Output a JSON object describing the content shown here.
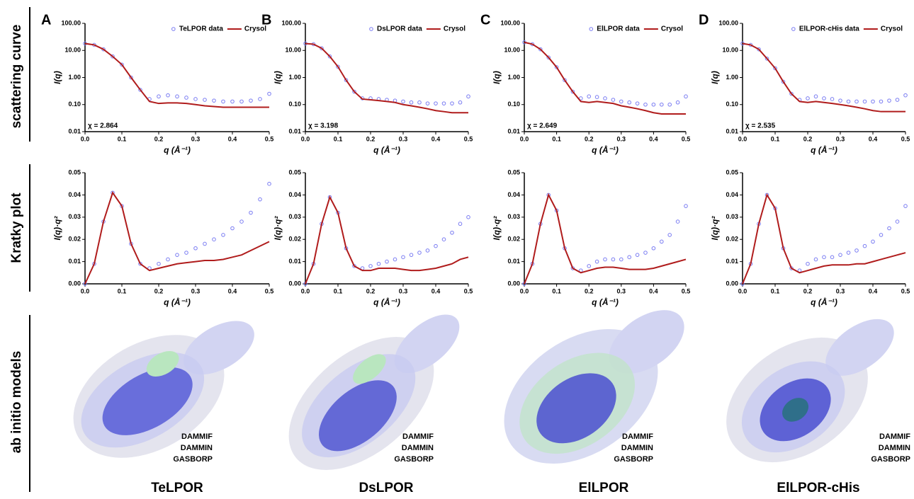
{
  "row_labels": [
    "scattering curve",
    "Kratky plot",
    "ab initio models"
  ],
  "models": [
    {
      "name": "TeLPOR",
      "legend": [
        "DAMMIF",
        "DAMMIN",
        "GASBORP"
      ]
    },
    {
      "name": "DsLPOR",
      "legend": [
        "DAMMIF",
        "DAMMIN",
        "GASBORP"
      ]
    },
    {
      "name": "ElLPOR",
      "legend": [
        "DAMMIF",
        "DAMMIN",
        "GASBORP"
      ]
    },
    {
      "name": "ElLPOR-cHis",
      "legend": [
        "DAMMIF",
        "DAMMIN",
        "GASBORP"
      ]
    }
  ],
  "legend_colors": [
    "#a6a8ee",
    "#6fd27d",
    "#bdbdbd"
  ],
  "chart_data": [
    {
      "type": "line",
      "label": "A",
      "log_y": true,
      "legend": "top-right",
      "annotation": "χ = 2.864",
      "xlabel": "q (Å⁻¹)",
      "ylabel": "I(q)",
      "xlim": [
        0,
        0.5
      ],
      "ylim": [
        0.01,
        100
      ],
      "xticks": [
        {
          "value": 0,
          "label": "0.0"
        },
        0.1,
        0.2,
        0.3,
        0.4,
        0.5
      ],
      "yticks": [
        0.01,
        {
          "value": 0.1,
          "label": "0.10"
        },
        {
          "value": 1,
          "label": "1.00"
        },
        {
          "value": 10,
          "label": "10.00"
        },
        {
          "value": 100,
          "label": "100.00"
        }
      ],
      "x": [
        0,
        0.025,
        0.05,
        0.075,
        0.1,
        0.125,
        0.15,
        0.175,
        0.2,
        0.225,
        0.25,
        0.275,
        0.3,
        0.325,
        0.35,
        0.375,
        0.4,
        0.425,
        0.45,
        0.475,
        0.5
      ],
      "series": [
        {
          "name": "TeLPOR data",
          "color": "#7a7cf2",
          "mode": "markers",
          "values": [
            18,
            16,
            11,
            6,
            3,
            1.0,
            0.35,
            0.16,
            0.2,
            0.22,
            0.2,
            0.18,
            0.16,
            0.15,
            0.14,
            0.13,
            0.13,
            0.13,
            0.14,
            0.16,
            0.25
          ]
        },
        {
          "name": "Crysol",
          "color": "#b01c1c",
          "mode": "line",
          "values": [
            18,
            16,
            11,
            6,
            3,
            1.0,
            0.35,
            0.13,
            0.11,
            0.115,
            0.115,
            0.11,
            0.1,
            0.09,
            0.085,
            0.08,
            0.08,
            0.08,
            0.08,
            0.08,
            0.08
          ]
        }
      ]
    },
    {
      "type": "line",
      "label": "B",
      "log_y": true,
      "legend": "top-right",
      "annotation": "χ = 3.198",
      "xlabel": "q (Å⁻¹)",
      "ylabel": "I(q)",
      "xlim": [
        0,
        0.5
      ],
      "ylim": [
        0.01,
        100
      ],
      "xticks": [
        {
          "value": 0,
          "label": "0.0"
        },
        0.1,
        0.2,
        0.3,
        0.4,
        0.5
      ],
      "yticks": [
        0.01,
        {
          "value": 0.1,
          "label": "0.10"
        },
        {
          "value": 1,
          "label": "1.00"
        },
        {
          "value": 10,
          "label": "10.00"
        },
        {
          "value": 100,
          "label": "100.00"
        }
      ],
      "x": [
        0,
        0.025,
        0.05,
        0.075,
        0.1,
        0.125,
        0.15,
        0.175,
        0.2,
        0.225,
        0.25,
        0.275,
        0.3,
        0.325,
        0.35,
        0.375,
        0.4,
        0.425,
        0.45,
        0.475,
        0.5
      ],
      "series": [
        {
          "name": "DsLPOR data",
          "color": "#7a7cf2",
          "mode": "markers",
          "values": [
            18,
            17,
            12,
            6,
            2.5,
            0.8,
            0.3,
            0.17,
            0.17,
            0.16,
            0.15,
            0.14,
            0.13,
            0.12,
            0.12,
            0.11,
            0.11,
            0.11,
            0.11,
            0.12,
            0.2
          ]
        },
        {
          "name": "Crysol",
          "color": "#b01c1c",
          "mode": "line",
          "values": [
            18,
            17,
            12,
            6,
            2.5,
            0.8,
            0.3,
            0.16,
            0.15,
            0.14,
            0.13,
            0.12,
            0.1,
            0.09,
            0.08,
            0.07,
            0.06,
            0.055,
            0.05,
            0.05,
            0.05
          ]
        }
      ]
    },
    {
      "type": "line",
      "label": "C",
      "log_y": true,
      "legend": "top-right",
      "annotation": "χ = 2.649",
      "xlabel": "q (Å⁻¹)",
      "ylabel": "I(q)",
      "xlim": [
        0,
        0.5
      ],
      "ylim": [
        0.01,
        100
      ],
      "xticks": [
        {
          "value": 0,
          "label": "0.0"
        },
        0.1,
        0.2,
        0.3,
        0.4,
        0.5
      ],
      "yticks": [
        0.01,
        {
          "value": 0.1,
          "label": "0.10"
        },
        {
          "value": 1,
          "label": "1.00"
        },
        {
          "value": 10,
          "label": "10.00"
        },
        {
          "value": 100,
          "label": "100.00"
        }
      ],
      "x": [
        0,
        0.025,
        0.05,
        0.075,
        0.1,
        0.125,
        0.15,
        0.175,
        0.2,
        0.225,
        0.25,
        0.275,
        0.3,
        0.325,
        0.35,
        0.375,
        0.4,
        0.425,
        0.45,
        0.475,
        0.5
      ],
      "series": [
        {
          "name": "ElLPOR data",
          "color": "#7a7cf2",
          "mode": "markers",
          "values": [
            20,
            17,
            11,
            5.5,
            2.4,
            0.8,
            0.3,
            0.17,
            0.2,
            0.19,
            0.17,
            0.15,
            0.13,
            0.12,
            0.11,
            0.1,
            0.1,
            0.1,
            0.1,
            0.12,
            0.2
          ]
        },
        {
          "name": "Crysol",
          "color": "#b01c1c",
          "mode": "line",
          "values": [
            20,
            17,
            11,
            5.5,
            2.4,
            0.8,
            0.3,
            0.13,
            0.12,
            0.13,
            0.12,
            0.11,
            0.09,
            0.08,
            0.07,
            0.06,
            0.05,
            0.045,
            0.045,
            0.045,
            0.045
          ]
        }
      ]
    },
    {
      "type": "line",
      "label": "D",
      "log_y": true,
      "legend": "top-right",
      "annotation": "χ = 2.535",
      "xlabel": "q (Å⁻¹)",
      "ylabel": "I(q)",
      "xlim": [
        0,
        0.5
      ],
      "ylim": [
        0.01,
        100
      ],
      "xticks": [
        {
          "value": 0,
          "label": "0.0"
        },
        0.1,
        0.2,
        0.3,
        0.4,
        0.5
      ],
      "yticks": [
        0.01,
        {
          "value": 0.1,
          "label": "0.10"
        },
        {
          "value": 1,
          "label": "1.00"
        },
        {
          "value": 10,
          "label": "10.00"
        },
        {
          "value": 100,
          "label": "100.00"
        }
      ],
      "x": [
        0,
        0.025,
        0.05,
        0.075,
        0.1,
        0.125,
        0.15,
        0.175,
        0.2,
        0.225,
        0.25,
        0.275,
        0.3,
        0.325,
        0.35,
        0.375,
        0.4,
        0.425,
        0.45,
        0.475,
        0.5
      ],
      "series": [
        {
          "name": "ElLPOR-cHis data",
          "color": "#7a7cf2",
          "mode": "markers",
          "values": [
            18,
            16,
            11,
            5,
            2.2,
            0.7,
            0.25,
            0.15,
            0.17,
            0.2,
            0.17,
            0.16,
            0.14,
            0.13,
            0.13,
            0.13,
            0.13,
            0.13,
            0.14,
            0.15,
            0.22
          ]
        },
        {
          "name": "Crysol",
          "color": "#b01c1c",
          "mode": "line",
          "values": [
            18,
            16,
            11,
            5,
            2.2,
            0.7,
            0.25,
            0.13,
            0.12,
            0.13,
            0.12,
            0.11,
            0.1,
            0.09,
            0.08,
            0.07,
            0.06,
            0.055,
            0.055,
            0.055,
            0.055
          ]
        }
      ]
    },
    {
      "type": "line",
      "xlabel": "q (Å⁻¹)",
      "ylabel": "I(q)·q²",
      "xlim": [
        0,
        0.5
      ],
      "ylim": [
        0,
        0.05
      ],
      "xticks": [
        {
          "value": 0,
          "label": "0.0"
        },
        0.1,
        0.2,
        0.3,
        0.4,
        0.5
      ],
      "yticks": [
        {
          "value": 0,
          "label": "0.00"
        },
        0.01,
        0.02,
        0.03,
        0.04,
        0.05
      ],
      "x": [
        0,
        0.025,
        0.05,
        0.075,
        0.1,
        0.125,
        0.15,
        0.175,
        0.2,
        0.225,
        0.25,
        0.275,
        0.3,
        0.325,
        0.35,
        0.375,
        0.4,
        0.425,
        0.45,
        0.475,
        0.5
      ],
      "series": [
        {
          "color": "#7a7cf2",
          "mode": "markers",
          "values": [
            0,
            0.009,
            0.028,
            0.041,
            0.035,
            0.018,
            0.009,
            0.007,
            0.009,
            0.011,
            0.013,
            0.014,
            0.016,
            0.018,
            0.02,
            0.022,
            0.025,
            0.028,
            0.032,
            0.038,
            0.045
          ]
        },
        {
          "color": "#b01c1c",
          "mode": "line",
          "values": [
            0,
            0.009,
            0.028,
            0.041,
            0.035,
            0.018,
            0.009,
            0.006,
            0.007,
            0.008,
            0.009,
            0.0095,
            0.01,
            0.0105,
            0.0105,
            0.011,
            0.012,
            0.013,
            0.015,
            0.017,
            0.019
          ]
        }
      ]
    },
    {
      "type": "line",
      "xlabel": "q (Å⁻¹)",
      "ylabel": "I(q)·q²",
      "xlim": [
        0,
        0.5
      ],
      "ylim": [
        0,
        0.05
      ],
      "xticks": [
        {
          "value": 0,
          "label": "0.0"
        },
        0.1,
        0.2,
        0.3,
        0.4,
        0.5
      ],
      "yticks": [
        {
          "value": 0,
          "label": "0.00"
        },
        0.01,
        0.02,
        0.03,
        0.04,
        0.05
      ],
      "x": [
        0,
        0.025,
        0.05,
        0.075,
        0.1,
        0.125,
        0.15,
        0.175,
        0.2,
        0.225,
        0.25,
        0.275,
        0.3,
        0.325,
        0.35,
        0.375,
        0.4,
        0.425,
        0.45,
        0.475,
        0.5
      ],
      "series": [
        {
          "color": "#7a7cf2",
          "mode": "markers",
          "values": [
            0,
            0.009,
            0.027,
            0.039,
            0.032,
            0.016,
            0.008,
            0.007,
            0.008,
            0.009,
            0.01,
            0.011,
            0.012,
            0.013,
            0.014,
            0.015,
            0.017,
            0.02,
            0.023,
            0.027,
            0.03
          ]
        },
        {
          "color": "#b01c1c",
          "mode": "line",
          "values": [
            0,
            0.009,
            0.027,
            0.039,
            0.032,
            0.016,
            0.008,
            0.006,
            0.006,
            0.007,
            0.007,
            0.007,
            0.0065,
            0.006,
            0.006,
            0.0065,
            0.007,
            0.008,
            0.009,
            0.011,
            0.012
          ]
        }
      ]
    },
    {
      "type": "line",
      "xlabel": "q (Å⁻¹)",
      "ylabel": "I(q)·q²",
      "xlim": [
        0,
        0.5
      ],
      "ylim": [
        0,
        0.05
      ],
      "xticks": [
        {
          "value": 0,
          "label": "0.0"
        },
        0.1,
        0.2,
        0.3,
        0.4,
        0.5
      ],
      "yticks": [
        {
          "value": 0,
          "label": "0.00"
        },
        0.01,
        0.02,
        0.03,
        0.04,
        0.05
      ],
      "x": [
        0,
        0.025,
        0.05,
        0.075,
        0.1,
        0.125,
        0.15,
        0.175,
        0.2,
        0.225,
        0.25,
        0.275,
        0.3,
        0.325,
        0.35,
        0.375,
        0.4,
        0.425,
        0.45,
        0.475,
        0.5
      ],
      "series": [
        {
          "color": "#7a7cf2",
          "mode": "markers",
          "values": [
            0,
            0.009,
            0.027,
            0.04,
            0.033,
            0.016,
            0.007,
            0.006,
            0.008,
            0.01,
            0.011,
            0.011,
            0.011,
            0.012,
            0.013,
            0.014,
            0.016,
            0.019,
            0.022,
            0.028,
            0.035
          ]
        },
        {
          "color": "#b01c1c",
          "mode": "line",
          "values": [
            0,
            0.009,
            0.027,
            0.04,
            0.033,
            0.016,
            0.007,
            0.005,
            0.006,
            0.007,
            0.0075,
            0.0075,
            0.007,
            0.0065,
            0.0065,
            0.0065,
            0.007,
            0.008,
            0.009,
            0.01,
            0.011
          ]
        }
      ]
    },
    {
      "type": "line",
      "xlabel": "q (Å⁻¹)",
      "ylabel": "I(q)·q²",
      "xlim": [
        0,
        0.5
      ],
      "ylim": [
        0,
        0.05
      ],
      "xticks": [
        {
          "value": 0,
          "label": "0.0"
        },
        0.1,
        0.2,
        0.3,
        0.4,
        0.5
      ],
      "yticks": [
        {
          "value": 0,
          "label": "0.00"
        },
        0.01,
        0.02,
        0.03,
        0.04,
        0.05
      ],
      "x": [
        0,
        0.025,
        0.05,
        0.075,
        0.1,
        0.125,
        0.15,
        0.175,
        0.2,
        0.225,
        0.25,
        0.275,
        0.3,
        0.325,
        0.35,
        0.375,
        0.4,
        0.425,
        0.45,
        0.475,
        0.5
      ],
      "series": [
        {
          "color": "#7a7cf2",
          "mode": "markers",
          "values": [
            0,
            0.009,
            0.027,
            0.04,
            0.034,
            0.016,
            0.007,
            0.006,
            0.009,
            0.011,
            0.012,
            0.012,
            0.013,
            0.014,
            0.015,
            0.017,
            0.019,
            0.022,
            0.025,
            0.028,
            0.035
          ]
        },
        {
          "color": "#b01c1c",
          "mode": "line",
          "values": [
            0,
            0.009,
            0.027,
            0.04,
            0.034,
            0.016,
            0.007,
            0.005,
            0.006,
            0.007,
            0.008,
            0.0085,
            0.0085,
            0.0085,
            0.009,
            0.009,
            0.01,
            0.011,
            0.012,
            0.013,
            0.014
          ]
        }
      ]
    }
  ]
}
